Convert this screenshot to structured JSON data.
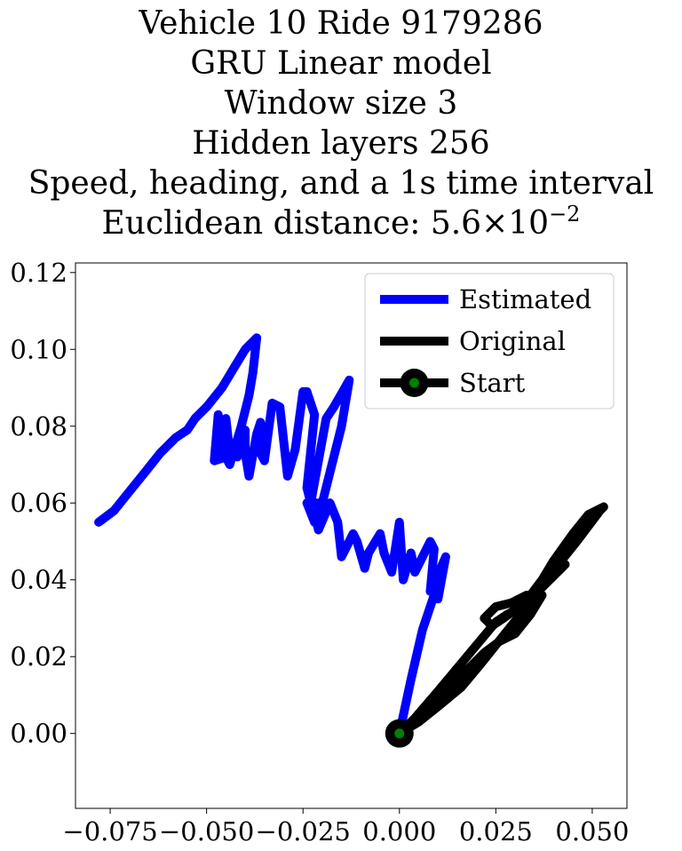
{
  "title_lines": [
    "Vehicle 10 Ride 9179286",
    "GRU Linear model",
    "Window size 3",
    "Hidden layers 256",
    "Speed, heading, and a 1s time interval"
  ],
  "distance_label": "Euclidean distance: 5.6",
  "distance_times": "×",
  "distance_base": "10",
  "distance_exponent": "−2",
  "chart_data": {
    "type": "line",
    "xlim": [
      -0.084,
      0.059
    ],
    "ylim": [
      -0.0195,
      0.1225
    ],
    "xticks": [
      -0.075,
      -0.05,
      -0.025,
      0.0,
      0.025,
      0.05
    ],
    "xtick_labels": [
      "−0.075",
      "−0.050",
      "−0.025",
      "0.000",
      "0.025",
      "0.050"
    ],
    "yticks": [
      0.0,
      0.02,
      0.04,
      0.06,
      0.08,
      0.1,
      0.12
    ],
    "ytick_labels": [
      "0.00",
      "0.02",
      "0.04",
      "0.06",
      "0.08",
      "0.10",
      "0.12"
    ],
    "grid": false,
    "legend_position": "top-right",
    "series": [
      {
        "name": "Estimated",
        "color": "#0000ff",
        "points": [
          [
            0.0,
            0.0
          ],
          [
            0.003,
            0.014
          ],
          [
            0.006,
            0.027
          ],
          [
            0.009,
            0.036
          ],
          [
            0.01,
            0.035
          ],
          [
            0.012,
            0.046
          ],
          [
            0.009,
            0.039
          ],
          [
            0.008,
            0.037
          ],
          [
            0.009,
            0.048
          ],
          [
            0.008,
            0.05
          ],
          [
            0.004,
            0.042
          ],
          [
            0.003,
            0.047
          ],
          [
            0.001,
            0.04
          ],
          [
            0.0,
            0.055
          ],
          [
            -0.002,
            0.042
          ],
          [
            -0.004,
            0.047
          ],
          [
            -0.005,
            0.052
          ],
          [
            -0.008,
            0.047
          ],
          [
            -0.009,
            0.043
          ],
          [
            -0.011,
            0.05
          ],
          [
            -0.012,
            0.052
          ],
          [
            -0.015,
            0.046
          ],
          [
            -0.016,
            0.055
          ],
          [
            -0.018,
            0.06
          ],
          [
            -0.021,
            0.053
          ],
          [
            -0.022,
            0.057
          ],
          [
            -0.02,
            0.06
          ],
          [
            -0.022,
            0.055
          ],
          [
            -0.024,
            0.06
          ],
          [
            -0.02,
            0.06
          ],
          [
            -0.015,
            0.08
          ],
          [
            -0.013,
            0.092
          ],
          [
            -0.017,
            0.085
          ],
          [
            -0.019,
            0.082
          ],
          [
            -0.023,
            0.06
          ],
          [
            -0.024,
            0.064
          ],
          [
            -0.022,
            0.083
          ],
          [
            -0.024,
            0.089
          ],
          [
            -0.025,
            0.089
          ],
          [
            -0.027,
            0.074
          ],
          [
            -0.029,
            0.067
          ],
          [
            -0.031,
            0.085
          ],
          [
            -0.033,
            0.086
          ],
          [
            -0.035,
            0.071
          ],
          [
            -0.036,
            0.073
          ],
          [
            -0.036,
            0.081
          ],
          [
            -0.037,
            0.078
          ],
          [
            -0.039,
            0.067
          ],
          [
            -0.04,
            0.073
          ],
          [
            -0.04,
            0.079
          ],
          [
            -0.042,
            0.072
          ],
          [
            -0.044,
            0.073
          ],
          [
            -0.045,
            0.082
          ],
          [
            -0.046,
            0.073
          ],
          [
            -0.047,
            0.083
          ],
          [
            -0.048,
            0.071
          ],
          [
            -0.045,
            0.072
          ],
          [
            -0.044,
            0.07
          ],
          [
            -0.041,
            0.08
          ],
          [
            -0.039,
            0.088
          ],
          [
            -0.038,
            0.094
          ],
          [
            -0.037,
            0.103
          ],
          [
            -0.04,
            0.1
          ],
          [
            -0.04,
            0.1
          ],
          [
            -0.043,
            0.095
          ],
          [
            -0.046,
            0.09
          ],
          [
            -0.05,
            0.085
          ],
          [
            -0.053,
            0.082
          ],
          [
            -0.055,
            0.079
          ],
          [
            -0.058,
            0.077
          ],
          [
            -0.062,
            0.073
          ],
          [
            -0.066,
            0.068
          ],
          [
            -0.07,
            0.063
          ],
          [
            -0.074,
            0.058
          ],
          [
            -0.078,
            0.055
          ]
        ]
      },
      {
        "name": "Original",
        "color": "#000000",
        "points": [
          [
            0.0,
            0.0
          ],
          [
            0.005,
            0.003
          ],
          [
            0.01,
            0.007
          ],
          [
            0.016,
            0.012
          ],
          [
            0.021,
            0.018
          ],
          [
            0.025,
            0.023
          ],
          [
            0.029,
            0.028
          ],
          [
            0.033,
            0.033
          ],
          [
            0.036,
            0.037
          ],
          [
            0.039,
            0.041
          ],
          [
            0.042,
            0.045
          ],
          [
            0.046,
            0.05
          ],
          [
            0.049,
            0.054
          ],
          [
            0.052,
            0.058
          ],
          [
            0.053,
            0.059
          ],
          [
            0.049,
            0.057
          ],
          [
            0.045,
            0.052
          ],
          [
            0.04,
            0.045
          ],
          [
            0.037,
            0.04
          ],
          [
            0.034,
            0.036
          ],
          [
            0.031,
            0.033
          ],
          [
            0.027,
            0.03
          ],
          [
            0.024,
            0.028
          ],
          [
            0.022,
            0.03
          ],
          [
            0.025,
            0.033
          ],
          [
            0.029,
            0.034
          ],
          [
            0.033,
            0.036
          ],
          [
            0.037,
            0.036
          ],
          [
            0.034,
            0.031
          ],
          [
            0.03,
            0.026
          ],
          [
            0.026,
            0.024
          ],
          [
            0.022,
            0.021
          ],
          [
            0.018,
            0.017
          ],
          [
            0.014,
            0.013
          ],
          [
            0.01,
            0.008
          ],
          [
            0.005,
            0.003
          ],
          [
            0.0,
            0.0
          ],
          [
            0.004,
            0.004
          ],
          [
            0.01,
            0.011
          ],
          [
            0.015,
            0.017
          ],
          [
            0.02,
            0.023
          ],
          [
            0.025,
            0.029
          ],
          [
            0.028,
            0.031
          ],
          [
            0.032,
            0.033
          ],
          [
            0.035,
            0.036
          ],
          [
            0.038,
            0.039
          ],
          [
            0.041,
            0.042
          ],
          [
            0.043,
            0.044
          ]
        ]
      }
    ],
    "start": {
      "name": "Start",
      "x": 0.0,
      "y": 0.0,
      "outer_color": "#000000",
      "inner_color": "#008000"
    }
  }
}
